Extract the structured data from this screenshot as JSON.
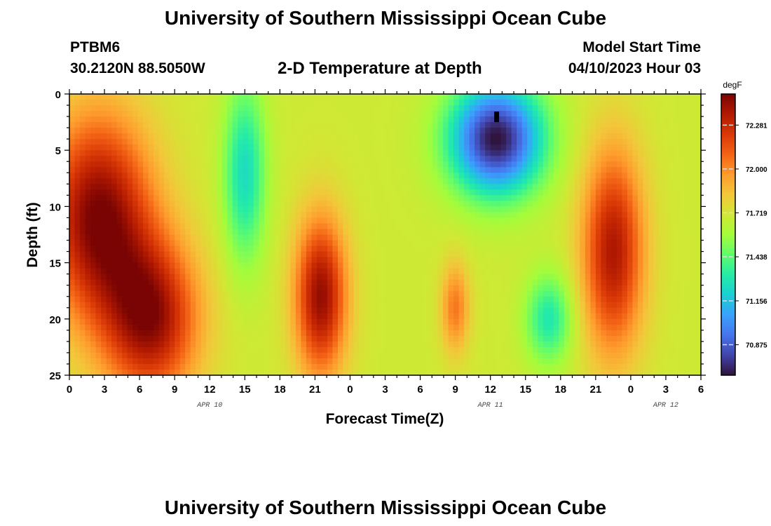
{
  "header": {
    "title": "University of Southern Mississippi Ocean Cube",
    "station": "PTBM6",
    "coords": "30.2120N  88.5050W",
    "subtitle": "2-D Temperature at Depth",
    "start_label": "Model Start Time",
    "start_value": "04/10/2023 Hour 03"
  },
  "footer": {
    "title": "University of Southern Mississippi Ocean Cube"
  },
  "chart_data": {
    "type": "heatmap",
    "title": "2-D Temperature at Depth",
    "xlabel": "Forecast Time(Z)",
    "ylabel": "Depth (ft)",
    "x_range_hours": [
      0,
      54
    ],
    "y_range_ft": [
      0,
      25
    ],
    "x_ticks": [
      {
        "hour": 0,
        "label": "0"
      },
      {
        "hour": 3,
        "label": "3"
      },
      {
        "hour": 6,
        "label": "6"
      },
      {
        "hour": 9,
        "label": "9"
      },
      {
        "hour": 12,
        "label": "12"
      },
      {
        "hour": 15,
        "label": "15"
      },
      {
        "hour": 18,
        "label": "18"
      },
      {
        "hour": 21,
        "label": "21"
      },
      {
        "hour": 24,
        "label": "0"
      },
      {
        "hour": 27,
        "label": "3"
      },
      {
        "hour": 30,
        "label": "6"
      },
      {
        "hour": 33,
        "label": "9"
      },
      {
        "hour": 36,
        "label": "12"
      },
      {
        "hour": 39,
        "label": "15"
      },
      {
        "hour": 42,
        "label": "18"
      },
      {
        "hour": 45,
        "label": "21"
      },
      {
        "hour": 48,
        "label": "0"
      },
      {
        "hour": 51,
        "label": "3"
      },
      {
        "hour": 54,
        "label": "6"
      }
    ],
    "y_ticks": [
      {
        "depth": 0,
        "label": "0"
      },
      {
        "depth": 5,
        "label": "5"
      },
      {
        "depth": 10,
        "label": "10"
      },
      {
        "depth": 15,
        "label": "15"
      },
      {
        "depth": 20,
        "label": "20"
      },
      {
        "depth": 25,
        "label": "25"
      }
    ],
    "date_labels": [
      {
        "hour": 12,
        "label": "APR 10"
      },
      {
        "hour": 36,
        "label": "APR 11"
      },
      {
        "hour": 51,
        "label": "APR 12"
      }
    ],
    "colorbar": {
      "unit": "degF",
      "min": 70.68,
      "max": 72.48,
      "ticks": [
        72.281,
        72.0,
        71.719,
        71.438,
        71.156,
        70.875
      ],
      "tick_labels": [
        "72.281",
        "72.000",
        "71.719",
        "71.438",
        "71.156",
        "70.875"
      ],
      "colors": [
        "#30123b",
        "#4145ab",
        "#4675ed",
        "#39a2fc",
        "#1bcfd4",
        "#24eca6",
        "#61fc6c",
        "#a4fc3b",
        "#d1e834",
        "#f3c63a",
        "#fe9b2d",
        "#f36315",
        "#d93806",
        "#b11901",
        "#7a0403"
      ]
    },
    "features": [
      {
        "hour": 2.5,
        "depth": 11,
        "temp": 72.48,
        "x_spread": 4.5,
        "y_spread": 9,
        "note": "warm core"
      },
      {
        "hour": 7,
        "depth": 20,
        "temp": 72.4,
        "x_spread": 4,
        "y_spread": 7
      },
      {
        "hour": 21.5,
        "depth": 18,
        "temp": 72.42,
        "x_spread": 2.2,
        "y_spread": 7
      },
      {
        "hour": 33,
        "depth": 19,
        "temp": 72.05,
        "x_spread": 1.2,
        "y_spread": 4
      },
      {
        "hour": 46.5,
        "depth": 14,
        "temp": 72.36,
        "x_spread": 2.6,
        "y_spread": 9
      },
      {
        "hour": 36.5,
        "depth": 4,
        "temp": 70.68,
        "x_spread": 4,
        "y_spread": 5,
        "note": "cold core"
      },
      {
        "hour": 15,
        "depth": 7,
        "temp": 71.25,
        "x_spread": 1.8,
        "y_spread": 8
      },
      {
        "hour": 41,
        "depth": 20,
        "temp": 71.3,
        "x_spread": 2,
        "y_spread": 4
      }
    ],
    "background_temp": 71.7,
    "marker": {
      "hour": 36.5,
      "depth": 2
    }
  }
}
